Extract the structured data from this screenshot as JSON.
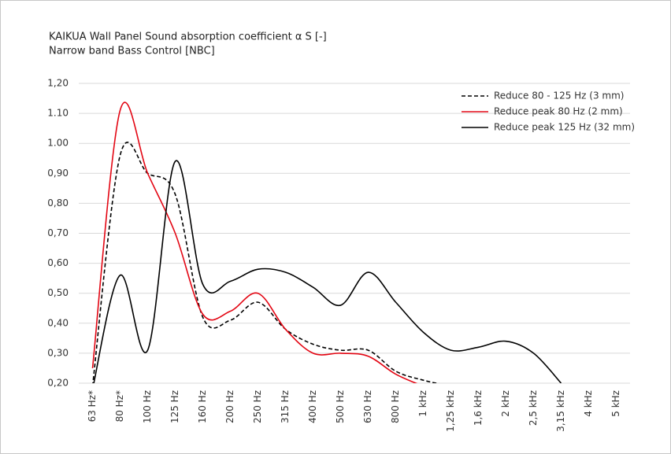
{
  "chart_data": {
    "type": "line",
    "title": "KAIKUA Wall Panel Sound absorption coefficient  α S [-]",
    "subtitle": "Narrow band Bass Control [NBC]",
    "categories": [
      "63 Hz*",
      "80 Hz*",
      "100 Hz",
      "125 Hz",
      "160 Hz",
      "200 Hz",
      "250 Hz",
      "315 Hz",
      "400 Hz",
      "500 Hz",
      "630 Hz",
      "800 Hz",
      "1 kHz",
      "1,25 kHz",
      "1,6 kHz",
      "2 kHz",
      "2,5 kHz",
      "3,15 kHz",
      "4 kHz",
      "5 kHz"
    ],
    "series": [
      {
        "name": "Reduce 80 - 125 Hz (3 mm)",
        "color": "#000000",
        "dashed": true,
        "values": [
          0.19,
          0.96,
          0.9,
          0.83,
          0.42,
          0.41,
          0.47,
          0.38,
          0.33,
          0.31,
          0.31,
          0.24,
          0.21,
          0.19,
          null,
          null,
          null,
          null,
          null,
          null
        ]
      },
      {
        "name": "Reduce peak 80 Hz (2 mm)",
        "color": "#e30613",
        "dashed": false,
        "values": [
          0.25,
          1.11,
          0.9,
          0.7,
          0.43,
          0.44,
          0.5,
          0.38,
          0.3,
          0.3,
          0.29,
          0.23,
          0.19,
          null,
          null,
          null,
          null,
          null,
          null,
          null
        ]
      },
      {
        "name": "Reduce peak 125 Hz (32 mm)",
        "color": "#000000",
        "dashed": false,
        "values": [
          0.18,
          0.56,
          0.31,
          0.94,
          0.53,
          0.54,
          0.58,
          0.57,
          0.52,
          0.46,
          0.57,
          0.47,
          0.37,
          0.31,
          0.32,
          0.34,
          0.3,
          0.2,
          null,
          null
        ]
      }
    ],
    "ylim": [
      0.2,
      1.2
    ],
    "yticks": [
      {
        "value": 0.2,
        "label": "0,20"
      },
      {
        "value": 0.3,
        "label": "0,30"
      },
      {
        "value": 0.4,
        "label": "0,40"
      },
      {
        "value": 0.5,
        "label": "0,50"
      },
      {
        "value": 0.6,
        "label": "0,60"
      },
      {
        "value": 0.7,
        "label": "0,70"
      },
      {
        "value": 0.8,
        "label": "0,80"
      },
      {
        "value": 0.9,
        "label": "0,90"
      },
      {
        "value": 1.0,
        "label": "1.00"
      },
      {
        "value": 1.1,
        "label": "1.10"
      },
      {
        "value": 1.2,
        "label": "1,20"
      }
    ],
    "grid": true,
    "legend": "top-right"
  }
}
